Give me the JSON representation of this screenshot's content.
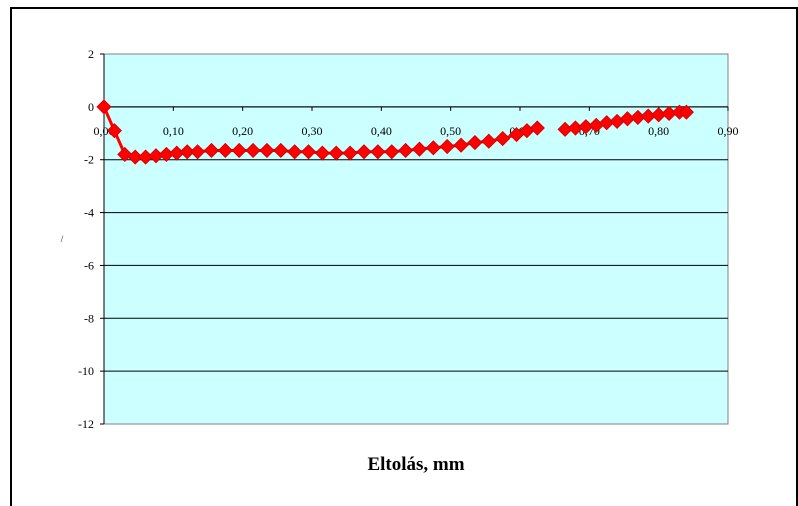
{
  "chart_data": {
    "type": "scatter",
    "title": "",
    "xlabel": "Eltolás, mm",
    "ylabel": "/",
    "xlim": [
      0,
      0.9
    ],
    "ylim": [
      -12,
      2
    ],
    "x_ticks": [
      "0,00",
      "0,10",
      "0,20",
      "0,30",
      "0,40",
      "0,50",
      "0,60",
      "0,70",
      "0,80",
      "0,90"
    ],
    "y_ticks": [
      "2",
      "0",
      "-2",
      "-4",
      "-6",
      "-8",
      "-10",
      "-12"
    ],
    "grid": "horizontal",
    "colors": {
      "plot_area": "#ccffff",
      "series": "#ff0000",
      "marker_stroke": "#cc0000"
    },
    "series": [
      {
        "marker": "diamond",
        "segments": [
          [
            [
              0.0,
              0.0
            ],
            [
              0.015,
              -0.9
            ],
            [
              0.03,
              -1.8
            ],
            [
              0.045,
              -1.9
            ],
            [
              0.06,
              -1.9
            ],
            [
              0.075,
              -1.85
            ],
            [
              0.09,
              -1.8
            ],
            [
              0.105,
              -1.75
            ],
            [
              0.12,
              -1.7
            ],
            [
              0.135,
              -1.7
            ],
            [
              0.155,
              -1.65
            ],
            [
              0.175,
              -1.65
            ],
            [
              0.195,
              -1.65
            ],
            [
              0.215,
              -1.65
            ],
            [
              0.235,
              -1.65
            ],
            [
              0.255,
              -1.65
            ],
            [
              0.275,
              -1.7
            ],
            [
              0.295,
              -1.7
            ],
            [
              0.315,
              -1.75
            ],
            [
              0.335,
              -1.75
            ],
            [
              0.355,
              -1.75
            ],
            [
              0.375,
              -1.7
            ],
            [
              0.395,
              -1.7
            ],
            [
              0.415,
              -1.7
            ],
            [
              0.435,
              -1.65
            ],
            [
              0.455,
              -1.6
            ],
            [
              0.475,
              -1.55
            ],
            [
              0.495,
              -1.5
            ],
            [
              0.515,
              -1.45
            ],
            [
              0.535,
              -1.35
            ],
            [
              0.555,
              -1.3
            ],
            [
              0.575,
              -1.2
            ],
            [
              0.595,
              -1.05
            ],
            [
              0.61,
              -0.9
            ],
            [
              0.625,
              -0.8
            ]
          ],
          [
            [
              0.665,
              -0.85
            ],
            [
              0.68,
              -0.8
            ],
            [
              0.695,
              -0.75
            ],
            [
              0.71,
              -0.7
            ],
            [
              0.725,
              -0.6
            ],
            [
              0.74,
              -0.55
            ],
            [
              0.755,
              -0.45
            ],
            [
              0.77,
              -0.4
            ],
            [
              0.785,
              -0.35
            ],
            [
              0.8,
              -0.3
            ],
            [
              0.815,
              -0.25
            ],
            [
              0.83,
              -0.2
            ],
            [
              0.84,
              -0.2
            ]
          ]
        ]
      }
    ]
  }
}
